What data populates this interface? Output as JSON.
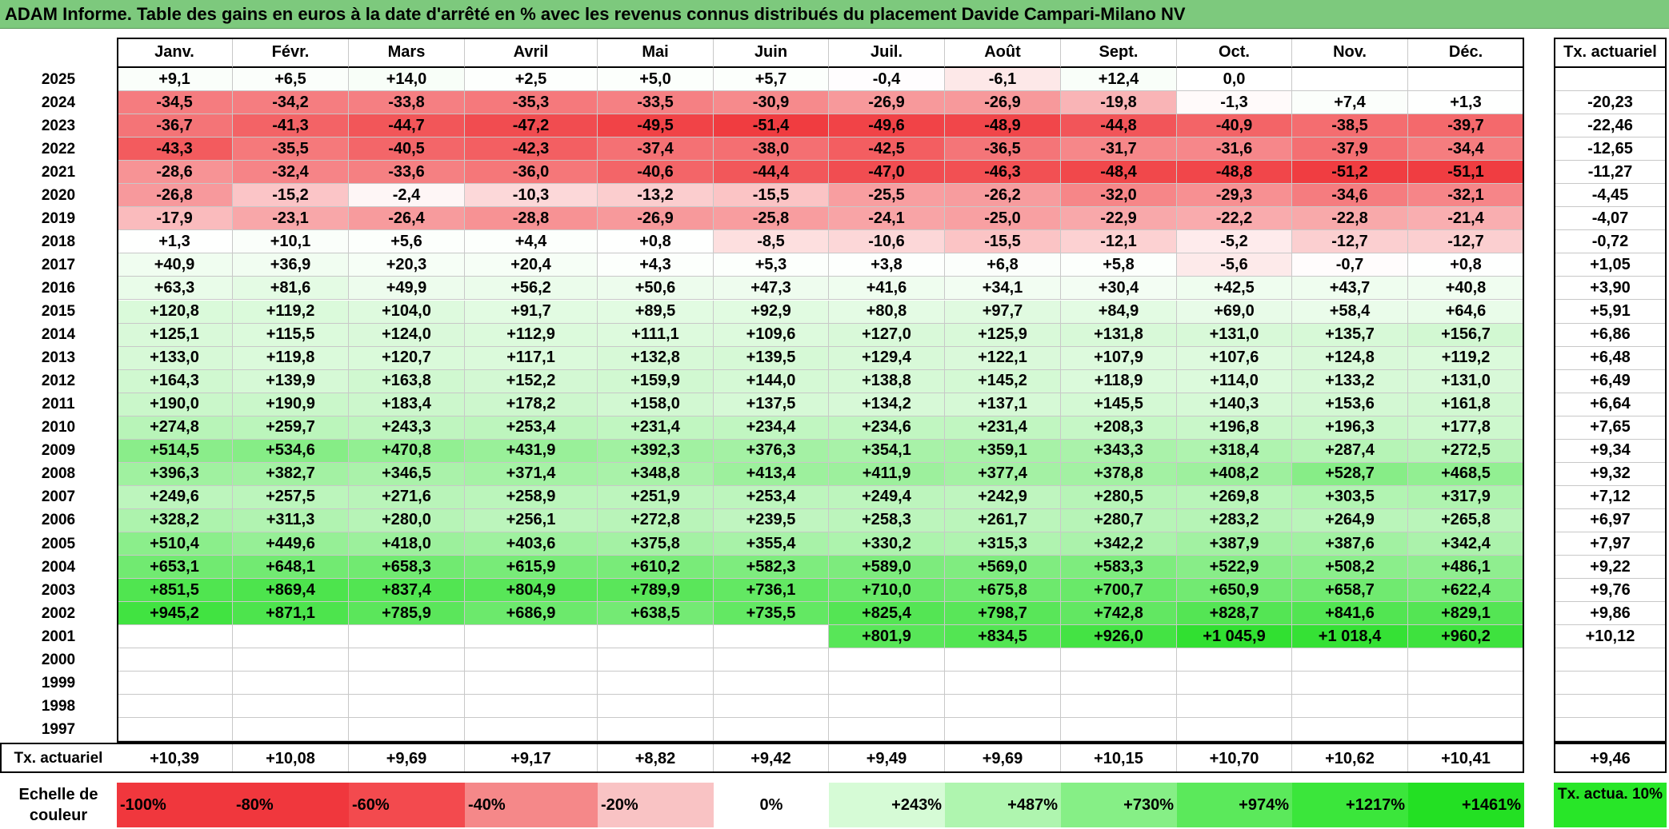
{
  "title": "ADAM Informe. Table des gains en euros à la date d'arrêté en % avec les revenus connus distribués du placement Davide Campari-Milano NV",
  "months": [
    "Janv.",
    "Févr.",
    "Mars",
    "Avril",
    "Mai",
    "Juin",
    "Juil.",
    "Août",
    "Sept.",
    "Oct.",
    "Nov.",
    "Déc."
  ],
  "tx_header": "Tx. actuariel",
  "rows": [
    {
      "year": "2025",
      "values": [
        "+9,1",
        "+6,5",
        "+14,0",
        "+2,5",
        "+5,0",
        "+5,7",
        "-0,4",
        "-6,1",
        "+12,4",
        "0,0",
        "",
        ""
      ],
      "tx": ""
    },
    {
      "year": "2024",
      "values": [
        "-34,5",
        "-34,2",
        "-33,8",
        "-35,3",
        "-33,5",
        "-30,9",
        "-26,9",
        "-26,9",
        "-19,8",
        "-1,3",
        "+7,4",
        "+1,3"
      ],
      "tx": "-20,23"
    },
    {
      "year": "2023",
      "values": [
        "-36,7",
        "-41,3",
        "-44,7",
        "-47,2",
        "-49,5",
        "-51,4",
        "-49,6",
        "-48,9",
        "-44,8",
        "-40,9",
        "-38,5",
        "-39,7"
      ],
      "tx": "-22,46"
    },
    {
      "year": "2022",
      "values": [
        "-43,3",
        "-35,5",
        "-40,5",
        "-42,3",
        "-37,4",
        "-38,0",
        "-42,5",
        "-36,5",
        "-31,7",
        "-31,6",
        "-37,9",
        "-34,4"
      ],
      "tx": "-12,65"
    },
    {
      "year": "2021",
      "values": [
        "-28,6",
        "-32,4",
        "-33,6",
        "-36,0",
        "-40,6",
        "-44,4",
        "-47,0",
        "-46,3",
        "-48,4",
        "-48,8",
        "-51,2",
        "-51,1"
      ],
      "tx": "-11,27"
    },
    {
      "year": "2020",
      "values": [
        "-26,8",
        "-15,2",
        "-2,4",
        "-10,3",
        "-13,2",
        "-15,5",
        "-25,5",
        "-26,2",
        "-32,0",
        "-29,3",
        "-34,6",
        "-32,1"
      ],
      "tx": "-4,45"
    },
    {
      "year": "2019",
      "values": [
        "-17,9",
        "-23,1",
        "-26,4",
        "-28,8",
        "-26,9",
        "-25,8",
        "-24,1",
        "-25,0",
        "-22,9",
        "-22,2",
        "-22,8",
        "-21,4"
      ],
      "tx": "-4,07"
    },
    {
      "year": "2018",
      "values": [
        "+1,3",
        "+10,1",
        "+5,6",
        "+4,4",
        "+0,8",
        "-8,5",
        "-10,6",
        "-15,5",
        "-12,1",
        "-5,2",
        "-12,7",
        "-12,7"
      ],
      "tx": "-0,72"
    },
    {
      "year": "2017",
      "values": [
        "+40,9",
        "+36,9",
        "+20,3",
        "+20,4",
        "+4,3",
        "+5,3",
        "+3,8",
        "+6,8",
        "+5,8",
        "-5,6",
        "-0,7",
        "+0,8"
      ],
      "tx": "+1,05"
    },
    {
      "year": "2016",
      "values": [
        "+63,3",
        "+81,6",
        "+49,9",
        "+56,2",
        "+50,6",
        "+47,3",
        "+41,6",
        "+34,1",
        "+30,4",
        "+42,5",
        "+43,7",
        "+40,8"
      ],
      "tx": "+3,90"
    },
    {
      "year": "2015",
      "values": [
        "+120,8",
        "+119,2",
        "+104,0",
        "+91,7",
        "+89,5",
        "+92,9",
        "+80,8",
        "+97,7",
        "+84,9",
        "+69,0",
        "+58,4",
        "+64,6"
      ],
      "tx": "+5,91"
    },
    {
      "year": "2014",
      "values": [
        "+125,1",
        "+115,5",
        "+124,0",
        "+112,9",
        "+111,1",
        "+109,6",
        "+127,0",
        "+125,9",
        "+131,8",
        "+131,0",
        "+135,7",
        "+156,7"
      ],
      "tx": "+6,86"
    },
    {
      "year": "2013",
      "values": [
        "+133,0",
        "+119,8",
        "+120,7",
        "+117,1",
        "+132,8",
        "+139,5",
        "+129,4",
        "+122,1",
        "+107,9",
        "+107,6",
        "+124,8",
        "+119,2"
      ],
      "tx": "+6,48"
    },
    {
      "year": "2012",
      "values": [
        "+164,3",
        "+139,9",
        "+163,8",
        "+152,2",
        "+159,9",
        "+144,0",
        "+138,8",
        "+145,2",
        "+118,9",
        "+114,0",
        "+133,2",
        "+131,0"
      ],
      "tx": "+6,49"
    },
    {
      "year": "2011",
      "values": [
        "+190,0",
        "+190,9",
        "+183,4",
        "+178,2",
        "+158,0",
        "+137,5",
        "+134,2",
        "+137,1",
        "+145,5",
        "+140,3",
        "+153,6",
        "+161,8"
      ],
      "tx": "+6,64"
    },
    {
      "year": "2010",
      "values": [
        "+274,8",
        "+259,7",
        "+243,3",
        "+253,4",
        "+231,4",
        "+234,4",
        "+234,6",
        "+231,4",
        "+208,3",
        "+196,8",
        "+196,3",
        "+177,8"
      ],
      "tx": "+7,65"
    },
    {
      "year": "2009",
      "values": [
        "+514,5",
        "+534,6",
        "+470,8",
        "+431,9",
        "+392,3",
        "+376,3",
        "+354,1",
        "+359,1",
        "+343,3",
        "+318,4",
        "+287,4",
        "+272,5"
      ],
      "tx": "+9,34"
    },
    {
      "year": "2008",
      "values": [
        "+396,3",
        "+382,7",
        "+346,5",
        "+371,4",
        "+348,8",
        "+413,4",
        "+411,9",
        "+377,4",
        "+378,8",
        "+408,2",
        "+528,7",
        "+468,5"
      ],
      "tx": "+9,32"
    },
    {
      "year": "2007",
      "values": [
        "+249,6",
        "+257,5",
        "+271,6",
        "+258,9",
        "+251,9",
        "+253,4",
        "+249,4",
        "+242,9",
        "+280,5",
        "+269,8",
        "+303,5",
        "+317,9"
      ],
      "tx": "+7,12"
    },
    {
      "year": "2006",
      "values": [
        "+328,2",
        "+311,3",
        "+280,0",
        "+256,1",
        "+272,8",
        "+239,5",
        "+258,3",
        "+261,7",
        "+280,7",
        "+283,2",
        "+264,9",
        "+265,8"
      ],
      "tx": "+6,97"
    },
    {
      "year": "2005",
      "values": [
        "+510,4",
        "+449,6",
        "+418,0",
        "+403,6",
        "+375,8",
        "+355,4",
        "+330,2",
        "+315,3",
        "+342,2",
        "+387,9",
        "+387,6",
        "+342,4"
      ],
      "tx": "+7,97"
    },
    {
      "year": "2004",
      "values": [
        "+653,1",
        "+648,1",
        "+658,3",
        "+615,9",
        "+610,2",
        "+582,3",
        "+589,0",
        "+569,0",
        "+583,3",
        "+522,9",
        "+508,2",
        "+486,1"
      ],
      "tx": "+9,22"
    },
    {
      "year": "2003",
      "values": [
        "+851,5",
        "+869,4",
        "+837,4",
        "+804,9",
        "+789,9",
        "+736,1",
        "+710,0",
        "+675,8",
        "+700,7",
        "+650,9",
        "+658,7",
        "+622,4"
      ],
      "tx": "+9,76"
    },
    {
      "year": "2002",
      "values": [
        "+945,2",
        "+871,1",
        "+785,9",
        "+686,9",
        "+638,5",
        "+735,5",
        "+825,4",
        "+798,7",
        "+742,8",
        "+828,7",
        "+841,6",
        "+829,1"
      ],
      "tx": "+9,86"
    },
    {
      "year": "2001",
      "values": [
        "",
        "",
        "",
        "",
        "",
        "",
        "+801,9",
        "+834,5",
        "+926,0",
        "+1 045,9",
        "+1 018,4",
        "+960,2"
      ],
      "tx": "+10,12"
    },
    {
      "year": "2000",
      "values": [
        "",
        "",
        "",
        "",
        "",
        "",
        "",
        "",
        "",
        "",
        "",
        ""
      ],
      "tx": ""
    },
    {
      "year": "1999",
      "values": [
        "",
        "",
        "",
        "",
        "",
        "",
        "",
        "",
        "",
        "",
        "",
        ""
      ],
      "tx": ""
    },
    {
      "year": "1998",
      "values": [
        "",
        "",
        "",
        "",
        "",
        "",
        "",
        "",
        "",
        "",
        "",
        ""
      ],
      "tx": ""
    },
    {
      "year": "1997",
      "values": [
        "",
        "",
        "",
        "",
        "",
        "",
        "",
        "",
        "",
        "",
        "",
        ""
      ],
      "tx": ""
    }
  ],
  "footer": {
    "label": "Tx. actuariel",
    "values": [
      "+10,39",
      "+10,08",
      "+9,69",
      "+9,17",
      "+8,82",
      "+9,42",
      "+9,49",
      "+9,69",
      "+10,15",
      "+10,70",
      "+10,62",
      "+10,41"
    ],
    "tx": "+9,46"
  },
  "scale": {
    "label": "Echelle de couleur",
    "items": [
      {
        "text": "-100%",
        "color": "#f0373d"
      },
      {
        "text": "-80%",
        "color": "#f0373d"
      },
      {
        "text": "-60%",
        "color": "#f34a4e"
      },
      {
        "text": "-40%",
        "color": "#f58889"
      },
      {
        "text": "-20%",
        "color": "#f9c3c4"
      },
      {
        "text": "0%",
        "color": "#ffffff"
      },
      {
        "text": "+243%",
        "color": "#d6fbd6"
      },
      {
        "text": "+487%",
        "color": "#aff5af"
      },
      {
        "text": "+730%",
        "color": "#86ef86"
      },
      {
        "text": "+974%",
        "color": "#5be95b"
      },
      {
        "text": "+1217%",
        "color": "#3be63b"
      },
      {
        "text": "+1461%",
        "color": "#23e023"
      }
    ],
    "ta_label": "Tx. actua. 10%",
    "ta_color": "#28e628"
  }
}
